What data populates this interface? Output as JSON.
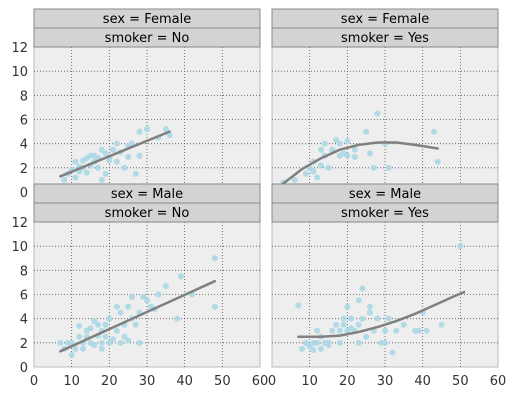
{
  "chart_data": {
    "type": "scatter",
    "layout": "2x2 facet grid with regression lines",
    "xlim": [
      0,
      60
    ],
    "ylim": [
      0,
      12
    ],
    "x_ticks": [
      "0",
      "10",
      "20",
      "30",
      "40",
      "50",
      "60"
    ],
    "y_ticks": [
      "0",
      "2",
      "4",
      "6",
      "8",
      "10",
      "12"
    ],
    "grid": true,
    "colors": {
      "points": "#add8e6",
      "fit_line": "#808080",
      "panel_bg": "#eeeeee",
      "strip_bg": "#d3d3d3"
    },
    "panels": [
      {
        "id": "female-no",
        "strips": [
          "sex = Female",
          "smoker = No"
        ],
        "points": [
          [
            8,
            1.0
          ],
          [
            9,
            1.5
          ],
          [
            10,
            1.8
          ],
          [
            11,
            1.2
          ],
          [
            11,
            2.5
          ],
          [
            12,
            1.7
          ],
          [
            12,
            2.1
          ],
          [
            13,
            2.0
          ],
          [
            13,
            2.6
          ],
          [
            14,
            1.6
          ],
          [
            14,
            2.8
          ],
          [
            15,
            2.2
          ],
          [
            15,
            3.0
          ],
          [
            16,
            2.5
          ],
          [
            16,
            3.0
          ],
          [
            17,
            2.0
          ],
          [
            17,
            2.8
          ],
          [
            18,
            3.5
          ],
          [
            18,
            1.0
          ],
          [
            19,
            3.2
          ],
          [
            19,
            1.5
          ],
          [
            20,
            2.6
          ],
          [
            20,
            2.9
          ],
          [
            21,
            3.5
          ],
          [
            22,
            4.0
          ],
          [
            22,
            2.5
          ],
          [
            23,
            3.3
          ],
          [
            24,
            2.0
          ],
          [
            25,
            2.9
          ],
          [
            25,
            3.8
          ],
          [
            26,
            4.0
          ],
          [
            27,
            1.5
          ],
          [
            28,
            3.0
          ],
          [
            28,
            5.0
          ],
          [
            30,
            5.2
          ],
          [
            33,
            4.5
          ],
          [
            35,
            5.2
          ],
          [
            36,
            4.7
          ]
        ],
        "fit": [
          [
            7,
            1.3
          ],
          [
            36,
            5.0
          ]
        ]
      },
      {
        "id": "female-yes",
        "strips": [
          "sex = Female",
          "smoker = Yes"
        ],
        "points": [
          [
            3,
            0.8
          ],
          [
            6,
            1.0
          ],
          [
            9,
            1.5
          ],
          [
            10,
            2.0
          ],
          [
            11,
            2.5
          ],
          [
            11,
            1.7
          ],
          [
            12,
            1.2
          ],
          [
            13,
            2.2
          ],
          [
            13,
            3.5
          ],
          [
            14,
            3.0
          ],
          [
            14,
            4.0
          ],
          [
            15,
            2.0
          ],
          [
            16,
            3.5
          ],
          [
            17,
            4.3
          ],
          [
            18,
            3.0
          ],
          [
            18,
            4.0
          ],
          [
            19,
            3.2
          ],
          [
            20,
            3.0
          ],
          [
            20,
            4.2
          ],
          [
            22,
            3.5
          ],
          [
            22,
            2.9
          ],
          [
            25,
            5.0
          ],
          [
            26,
            3.2
          ],
          [
            27,
            2.0
          ],
          [
            28,
            6.5
          ],
          [
            30,
            4.0
          ],
          [
            31,
            2.0
          ],
          [
            43,
            5.0
          ],
          [
            44,
            2.5
          ]
        ],
        "fit": [
          [
            3,
            0.7
          ],
          [
            8,
            1.9
          ],
          [
            13,
            2.8
          ],
          [
            18,
            3.5
          ],
          [
            23,
            3.9
          ],
          [
            28,
            4.1
          ],
          [
            33,
            4.1
          ],
          [
            38,
            3.9
          ],
          [
            44,
            3.6
          ]
        ]
      },
      {
        "id": "male-no",
        "strips": [
          "sex = Male",
          "smoker = No"
        ],
        "points": [
          [
            7,
            2.0
          ],
          [
            8,
            1.5
          ],
          [
            9,
            2.0
          ],
          [
            10,
            1.0
          ],
          [
            10,
            2.0
          ],
          [
            11,
            1.5
          ],
          [
            12,
            2.5
          ],
          [
            12,
            3.4
          ],
          [
            13,
            1.5
          ],
          [
            13,
            2.0
          ],
          [
            14,
            2.5
          ],
          [
            14,
            3.0
          ],
          [
            15,
            2.0
          ],
          [
            15,
            3.2
          ],
          [
            16,
            1.8
          ],
          [
            16,
            3.8
          ],
          [
            17,
            2.6
          ],
          [
            17,
            3.5
          ],
          [
            18,
            1.5
          ],
          [
            18,
            2.0
          ],
          [
            18,
            3.0
          ],
          [
            19,
            2.5
          ],
          [
            19,
            3.5
          ],
          [
            20,
            2.0
          ],
          [
            20,
            4.0
          ],
          [
            21,
            2.3
          ],
          [
            22,
            3.0
          ],
          [
            22,
            5.0
          ],
          [
            23,
            2.0
          ],
          [
            23,
            4.5
          ],
          [
            24,
            2.5
          ],
          [
            24,
            3.5
          ],
          [
            25,
            2.2
          ],
          [
            25,
            5.0
          ],
          [
            26,
            4.0
          ],
          [
            26,
            5.8
          ],
          [
            27,
            3.5
          ],
          [
            28,
            2.0
          ],
          [
            28,
            4.5
          ],
          [
            29,
            5.8
          ],
          [
            30,
            5.5
          ],
          [
            31,
            5.0
          ],
          [
            32,
            4.8
          ],
          [
            33,
            6.0
          ],
          [
            35,
            6.7
          ],
          [
            38,
            4.0
          ],
          [
            39,
            7.5
          ],
          [
            42,
            6.0
          ],
          [
            48,
            9.0
          ],
          [
            48,
            5.0
          ]
        ],
        "fit": [
          [
            7,
            1.3
          ],
          [
            48,
            7.1
          ]
        ]
      },
      {
        "id": "male-yes",
        "strips": [
          "sex = Male",
          "smoker = Yes"
        ],
        "points": [
          [
            7,
            5.1
          ],
          [
            8,
            1.5
          ],
          [
            9,
            2.0
          ],
          [
            10,
            1.7
          ],
          [
            11,
            2.0
          ],
          [
            11,
            1.4
          ],
          [
            12,
            2.0
          ],
          [
            12,
            3.0
          ],
          [
            13,
            1.5
          ],
          [
            13,
            2.5
          ],
          [
            14,
            2.0
          ],
          [
            15,
            2.0
          ],
          [
            15,
            1.8
          ],
          [
            16,
            3.0
          ],
          [
            17,
            3.5
          ],
          [
            18,
            2.0
          ],
          [
            18,
            3.0
          ],
          [
            19,
            3.5
          ],
          [
            19,
            4.0
          ],
          [
            20,
            3.0
          ],
          [
            20,
            5.0
          ],
          [
            21,
            4.0
          ],
          [
            21,
            3.2
          ],
          [
            22,
            3.0
          ],
          [
            23,
            2.0
          ],
          [
            23,
            3.5
          ],
          [
            23,
            5.5
          ],
          [
            24,
            6.5
          ],
          [
            24,
            4.0
          ],
          [
            25,
            2.5
          ],
          [
            26,
            4.5
          ],
          [
            26,
            5.0
          ],
          [
            27,
            3.0
          ],
          [
            28,
            4.0
          ],
          [
            29,
            2.0
          ],
          [
            30,
            2.0
          ],
          [
            30,
            3.0
          ],
          [
            31,
            4.0
          ],
          [
            32,
            1.2
          ],
          [
            33,
            3.0
          ],
          [
            35,
            3.5
          ],
          [
            38,
            3.0
          ],
          [
            39,
            3.0
          ],
          [
            40,
            4.5
          ],
          [
            41,
            3.0
          ],
          [
            45,
            3.5
          ],
          [
            50,
            10.0
          ]
        ],
        "fit": [
          [
            7,
            2.5
          ],
          [
            13,
            2.5
          ],
          [
            18,
            2.6
          ],
          [
            23,
            2.9
          ],
          [
            28,
            3.3
          ],
          [
            33,
            3.8
          ],
          [
            38,
            4.4
          ],
          [
            43,
            5.1
          ],
          [
            48,
            5.8
          ],
          [
            51,
            6.2
          ]
        ]
      }
    ]
  }
}
